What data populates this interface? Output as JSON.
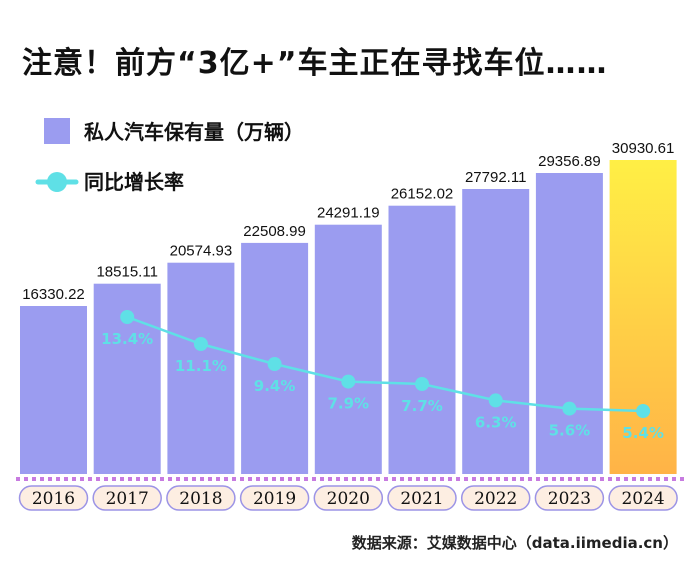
{
  "title": "注意！前方“3亿+”车主正在寻找车位……",
  "source": "数据来源：艾媒数据中心（data.iimedia.cn）",
  "colors": {
    "bar": "#9b9cf0",
    "highlight_top": "#ffef45",
    "highlight_bottom": "#ffb347",
    "line": "#5fe0e6",
    "rate_text": "#5fe0e6",
    "dotted_line": "#c77be0",
    "year_pill_fill": "#fdeee2",
    "year_pill_stroke": "#9c94e6"
  },
  "chart_data": {
    "type": "bar",
    "categories": [
      "2016",
      "2017",
      "2018",
      "2019",
      "2020",
      "2021",
      "2022",
      "2023",
      "2024"
    ],
    "series": [
      {
        "name": "私人汽车保有量（万辆）",
        "type": "bar",
        "values": [
          16330.22,
          18515.11,
          20574.93,
          22508.99,
          24291.19,
          26152.02,
          27792.11,
          29356.89,
          30930.61
        ],
        "labels": [
          "16330.22",
          "18515.11",
          "20574.93",
          "22508.99",
          "24291.19",
          "26152.02",
          "27792.11",
          "29356.89",
          "30930.61"
        ]
      },
      {
        "name": "同比增长率",
        "type": "line",
        "values": [
          null,
          13.4,
          11.1,
          9.4,
          7.9,
          7.7,
          6.3,
          5.6,
          5.4
        ],
        "labels": [
          "",
          "13.4%",
          "11.1%",
          "9.4%",
          "7.9%",
          "7.7%",
          "6.3%",
          "5.6%",
          "5.4%"
        ]
      }
    ],
    "highlight_category": "2024",
    "legend_position": "top-left",
    "grid": false
  }
}
